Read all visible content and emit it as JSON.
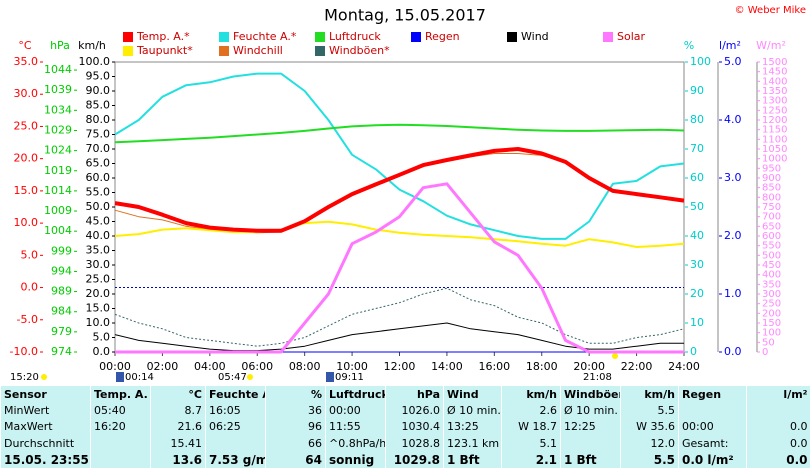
{
  "chart_data": {
    "type": "line",
    "title": "Montag, 15.05.2017",
    "copyright": "© Weber Mike",
    "x": [
      0,
      1,
      2,
      3,
      4,
      5,
      6,
      7,
      8,
      9,
      10,
      11,
      12,
      13,
      14,
      15,
      16,
      17,
      18,
      19,
      20,
      21,
      22,
      23,
      24
    ],
    "xlim": [
      0,
      24
    ],
    "xticks": [
      {
        "value": 0,
        "label": "00:00"
      },
      {
        "value": 2,
        "label": "02:00"
      },
      {
        "value": 4,
        "label": "04:00"
      },
      {
        "value": 6,
        "label": "06:00"
      },
      {
        "value": 8,
        "label": "08:00"
      },
      {
        "value": 10,
        "label": "10:00"
      },
      {
        "value": 12,
        "label": "12:00"
      },
      {
        "value": 14,
        "label": "14:00"
      },
      {
        "value": 16,
        "label": "16:00"
      },
      {
        "value": 18,
        "label": "18:00"
      },
      {
        "value": 20,
        "label": "20:00"
      },
      {
        "value": 22,
        "label": "22:00"
      },
      {
        "value": 24,
        "label": "24:00"
      }
    ],
    "ylabel": "°C",
    "ycolor": "#ff0000",
    "ylim": [
      -10,
      35
    ],
    "yticks": [
      {
        "value": -10,
        "label": "-10.0"
      },
      {
        "value": -5,
        "label": "-5.0"
      },
      {
        "value": 0,
        "label": "0.0"
      },
      {
        "value": 5,
        "label": "5.0"
      },
      {
        "value": 10,
        "label": "10.0"
      },
      {
        "value": 15,
        "label": "15.0"
      },
      {
        "value": 20,
        "label": "20.0"
      },
      {
        "value": 25,
        "label": "25.0"
      },
      {
        "value": 30,
        "label": "30.0"
      },
      {
        "value": 35,
        "label": "35.0"
      }
    ],
    "y2label": "hPa",
    "y2color": "#00cc00",
    "y2lim": [
      974,
      1046
    ],
    "y2ticks": [
      974,
      979,
      984,
      989,
      994,
      999,
      1004,
      1009,
      1014,
      1019,
      1024,
      1029,
      1034,
      1039,
      1044
    ],
    "y3label": "km/h",
    "y3color": "#000000",
    "y3lim": [
      0,
      100
    ],
    "y3ticks": [
      {
        "value": 0,
        "label": "0.0"
      },
      {
        "value": 5,
        "label": "5.0"
      },
      {
        "value": 10,
        "label": "10.0"
      },
      {
        "value": 15,
        "label": "15.0"
      },
      {
        "value": 20,
        "label": "20.0"
      },
      {
        "value": 25,
        "label": "25.0"
      },
      {
        "value": 30,
        "label": "30.0"
      },
      {
        "value": 35,
        "label": "35.0"
      },
      {
        "value": 40,
        "label": "40.0"
      },
      {
        "value": 45,
        "label": "45.0"
      },
      {
        "value": 50,
        "label": "50.0"
      },
      {
        "value": 55,
        "label": "55.0"
      },
      {
        "value": 60,
        "label": "60.0"
      },
      {
        "value": 65,
        "label": "65.0"
      },
      {
        "value": 70,
        "label": "70.0"
      },
      {
        "value": 75,
        "label": "75.0"
      },
      {
        "value": 80,
        "label": "80.0"
      },
      {
        "value": 85,
        "label": "85.0"
      },
      {
        "value": 90,
        "label": "90.0"
      },
      {
        "value": 95,
        "label": "95.0"
      },
      {
        "value": 100,
        "label": "100.0"
      }
    ],
    "y4label": "%",
    "y4color": "#00cccc",
    "y4lim": [
      0,
      100
    ],
    "y4ticks": [
      0,
      10,
      20,
      30,
      40,
      50,
      60,
      70,
      80,
      90,
      100
    ],
    "y5label": "l/m²",
    "y5color": "#0000ff",
    "y5lim": [
      0,
      5
    ],
    "y5ticks": [
      {
        "value": 0,
        "label": "0.0"
      },
      {
        "value": 1,
        "label": "1.0"
      },
      {
        "value": 2,
        "label": "2.0"
      },
      {
        "value": 3,
        "label": "3.0"
      },
      {
        "value": 4,
        "label": "4.0"
      },
      {
        "value": 5,
        "label": "5.0"
      }
    ],
    "y6label": "W/m²",
    "y6color": "#ff88ff",
    "y6lim": [
      0,
      1500
    ],
    "y6ticks": [
      0,
      50,
      100,
      150,
      200,
      250,
      300,
      350,
      400,
      450,
      500,
      550,
      600,
      650,
      700,
      750,
      800,
      850,
      900,
      950,
      1000,
      1050,
      1100,
      1150,
      1200,
      1250,
      1300,
      1350,
      1400,
      1450,
      1500
    ],
    "zero_line": true,
    "series": [
      {
        "name": "Temp. A.*",
        "color": "#ff0000",
        "axis": "y",
        "width": 4,
        "values": [
          13.1,
          12.5,
          11.3,
          10.0,
          9.3,
          9.0,
          8.8,
          8.8,
          10.3,
          12.5,
          14.5,
          16.0,
          17.5,
          19.0,
          19.8,
          20.5,
          21.2,
          21.5,
          20.8,
          19.5,
          17.0,
          15.0,
          14.5,
          14.0,
          13.5
        ]
      },
      {
        "name": "Feuchte A.*",
        "color": "#22e0e0",
        "axis": "y4",
        "width": 2,
        "values": [
          75,
          80,
          88,
          92,
          93,
          95,
          96,
          96,
          90,
          80,
          68,
          63,
          56,
          52,
          47,
          44,
          42,
          40,
          39,
          39,
          45,
          58,
          59,
          64,
          65
        ]
      },
      {
        "name": "Luftdruck",
        "color": "#22dd22",
        "axis": "y2",
        "width": 2,
        "values": [
          1026.1,
          1026.3,
          1026.6,
          1026.9,
          1027.2,
          1027.6,
          1028.0,
          1028.4,
          1028.9,
          1029.5,
          1030.0,
          1030.3,
          1030.4,
          1030.3,
          1030.1,
          1029.8,
          1029.5,
          1029.2,
          1029.0,
          1028.9,
          1028.9,
          1029.0,
          1029.1,
          1029.2,
          1029.0
        ]
      },
      {
        "name": "Regen",
        "color": "#0000ff",
        "axis": "y5",
        "width": 1,
        "values": [
          0,
          0,
          0,
          0,
          0,
          0,
          0,
          0,
          0,
          0,
          0,
          0,
          0,
          0,
          0,
          0,
          0,
          0,
          0,
          0,
          0,
          0,
          0,
          0,
          0
        ]
      },
      {
        "name": "Wind",
        "color": "#000000",
        "axis": "y3",
        "width": 1,
        "values": [
          6,
          4,
          3,
          2,
          1,
          0.5,
          0.5,
          1,
          2,
          4,
          6,
          7,
          8,
          9,
          10,
          8,
          7,
          6,
          4,
          2,
          1,
          1,
          2,
          3,
          3
        ]
      },
      {
        "name": "Solar",
        "color": "#ff77ff",
        "axis": "y6",
        "width": 3,
        "values": [
          0,
          0,
          0,
          0,
          0,
          0,
          0,
          0,
          150,
          300,
          560,
          620,
          700,
          850,
          870,
          720,
          570,
          500,
          330,
          60,
          0,
          0,
          0,
          0,
          0
        ]
      },
      {
        "name": "Taupunkt*",
        "color": "#ffee00",
        "axis": "y",
        "width": 2,
        "values": [
          8.0,
          8.3,
          9.0,
          9.2,
          8.9,
          8.6,
          8.6,
          9.0,
          10.0,
          10.2,
          9.8,
          9.0,
          8.5,
          8.2,
          8.0,
          7.8,
          7.5,
          7.2,
          6.8,
          6.5,
          7.5,
          7.0,
          6.3,
          6.5,
          6.8
        ]
      },
      {
        "name": "Windchill",
        "color": "#e07020",
        "axis": "y",
        "width": 1,
        "values": [
          12.0,
          11.0,
          10.5,
          9.5,
          9.0,
          8.7,
          8.5,
          8.6,
          10.0,
          12.3,
          14.3,
          15.8,
          17.3,
          18.8,
          19.6,
          20.3,
          20.8,
          20.8,
          20.5,
          19.5,
          17.0,
          15.0,
          14.5,
          14.0,
          13.5
        ]
      },
      {
        "name": "Windböen*",
        "color": "#336666",
        "axis": "y3",
        "width": 1,
        "dash": true,
        "values": [
          13,
          10,
          8,
          5,
          4,
          3,
          2,
          3,
          5,
          9,
          13,
          15,
          17,
          20,
          22,
          18,
          16,
          12,
          10,
          6,
          3,
          3,
          5,
          6,
          8
        ]
      }
    ]
  },
  "sun_times": [
    "15:20",
    "00:14",
    "05:47",
    "09:11",
    "21:08"
  ],
  "table": {
    "rows": [
      [
        "Sensor",
        "Temp. A.",
        "°C",
        "Feuchte A.",
        "%",
        "Luftdruck",
        "hPa",
        "Wind",
        "km/h",
        "Windböen",
        "km/h",
        "Regen",
        "l/m²"
      ],
      [
        "MinWert",
        "05:40",
        "8.7",
        "16:05",
        "36",
        "00:00",
        "1026.0",
        "Ø 10 min.",
        "2.6",
        "Ø 10 min.",
        "5.5",
        null,
        null
      ],
      [
        "MaxWert",
        "16:20",
        "21.6",
        "06:25",
        "96",
        "11:55",
        "1030.4",
        "13:25",
        "W 18.7",
        "12:25",
        "W 35.6",
        "00:00",
        "0.0"
      ],
      [
        "Durchschnitt",
        null,
        "15.41",
        null,
        "66",
        "^0.8hPa/h",
        "1028.8",
        "123.1 km",
        "5.1",
        null,
        "12.0",
        "Gesamt:",
        "0.0"
      ],
      [
        "15.05. 23:55",
        null,
        "13.6",
        "7.53 g/m³",
        "64",
        "sonnig",
        "1029.8",
        "1 Bft",
        "2.1",
        "1 Bft",
        "5.5",
        "0.0 l/m²",
        "0.0"
      ]
    ]
  }
}
